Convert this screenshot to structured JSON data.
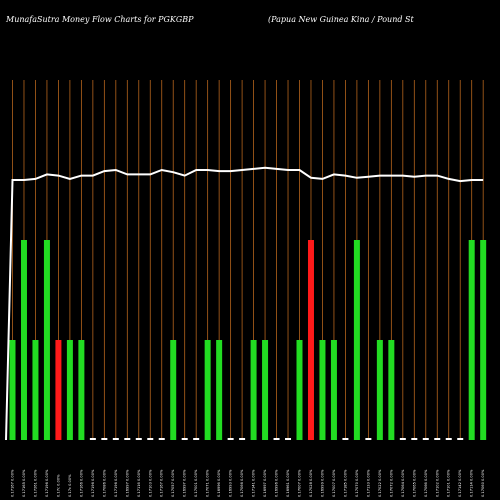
{
  "header": {
    "title_left": "MunafaSutra  Money Flow  Charts for PGKGBP",
    "title_right": "(Papua  New  Guinea  Kina  / Pound St"
  },
  "colors": {
    "background": "#000000",
    "gridline": "#b5651d",
    "positive_bar": "#22dd22",
    "negative_bar": "#ff1a1a",
    "neutral_bar": "#ffffff",
    "price_line": "#ffffff"
  },
  "chart_data": {
    "type": "bar",
    "title": "MunafaSutra  Money Flow  Charts for PGKGBP",
    "subtitle": "(Papua  New  Guinea  Kina  / Pound St",
    "grid": true,
    "bar_levels": {
      "1": "small",
      "2": "medium",
      "3": "large"
    },
    "categories": [
      "0.17167 0.00%",
      "0.17165 0.00%",
      "0.17261 0.00%",
      "0.17196 0.00%",
      "0.17c 0.00%",
      "0.17c 0.00%",
      "0.17166 0.00%",
      "0.17196 0.00%",
      "0.17086 0.00%",
      "0.17196 0.00%",
      "0.16997 0.00%",
      "0.17116 0.00%",
      "0.17103 0.00%",
      "0.17167 0.00%",
      "0.17057 0.00%",
      "0.16997 0.00%",
      "0.17001 0.00%",
      "0.17071 0.00%",
      "0.16996 0.00%",
      "0.16993 0.00%",
      "0.17066 0.00%",
      "0.17141 0.00%",
      "0.16997 0.00%",
      "0.16996 0.00%",
      "0.16961 0.00%",
      "0.17007 0.00%",
      "0.17028 0.00%",
      "0.16999 0.00%",
      "0.17007 0.00%",
      "0.17185 0.00%",
      "0.17070 0.00%",
      "0.17133 0.00%",
      "0.17022 0.00%",
      "0.17072 0.00%",
      "0.17064 0.00%",
      "0.17065 0.00%",
      "0.17066 0.00%",
      "0.17102 0.00%",
      "0.17101 0.00%",
      "0.17142 0.00%",
      "0.17114 0.00%",
      "0.17060 0.00%"
    ],
    "series": [
      {
        "values": [
          2,
          3,
          2,
          3,
          2,
          2,
          2,
          0,
          0,
          0,
          0,
          0,
          0,
          0,
          2,
          0,
          0,
          2,
          2,
          0,
          0,
          2,
          2,
          0,
          0,
          2,
          3,
          2,
          2,
          0,
          3,
          0,
          2,
          2,
          0,
          0,
          0,
          0,
          0,
          0,
          3,
          3
        ],
        "directions": [
          "up",
          "up",
          "up",
          "up",
          "down",
          "up",
          "up",
          "flat",
          "flat",
          "flat",
          "flat",
          "flat",
          "flat",
          "flat",
          "up",
          "flat",
          "flat",
          "up",
          "up",
          "flat",
          "flat",
          "up",
          "up",
          "flat",
          "flat",
          "up",
          "down",
          "up",
          "up",
          "flat",
          "up",
          "flat",
          "up",
          "up",
          "flat",
          "flat",
          "flat",
          "flat",
          "flat",
          "flat",
          "up",
          "up"
        ]
      },
      {
        "values": [
          0.1717,
          0.1717,
          0.1718,
          0.1722,
          0.1721,
          0.1718,
          0.1721,
          0.1721,
          0.1725,
          0.1726,
          0.1722,
          0.1722,
          0.1722,
          0.1726,
          0.1724,
          0.1721,
          0.1726,
          0.1726,
          0.1725,
          0.1725,
          0.1726,
          0.1727,
          0.1728,
          0.1727,
          0.1726,
          0.1726,
          0.1719,
          0.1718,
          0.1722,
          0.1721,
          0.1719,
          0.172,
          0.1721,
          0.1721,
          0.1721,
          0.172,
          0.1721,
          0.1721,
          0.1718,
          0.1716,
          0.1717,
          0.1717
        ]
      }
    ]
  }
}
